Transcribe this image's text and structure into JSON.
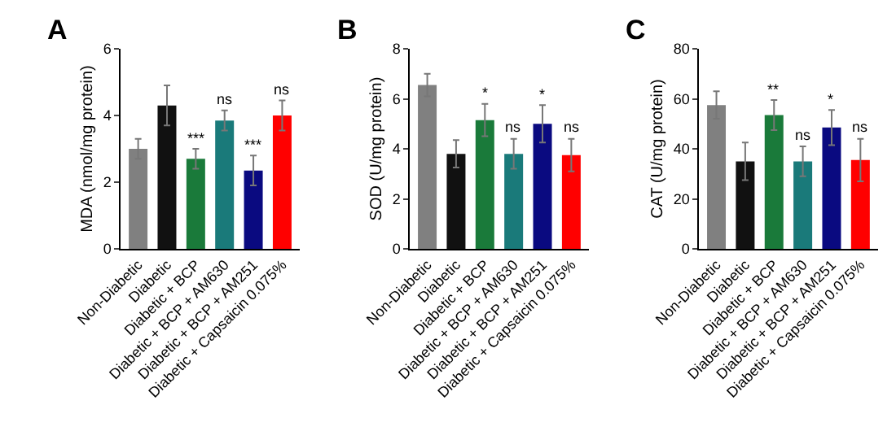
{
  "chart_data": [
    {
      "type": "bar",
      "title": "A",
      "ylabel": "MDA (nmol/mg protein)",
      "categories": [
        "Non-Diabetic",
        "Diabetic",
        "Diabetic + BCP",
        "Diabetic + BCP + AM630",
        "Diabetic + BCP + AM251",
        "Diabetic + Capsaicin 0.075%"
      ],
      "values": [
        3.0,
        4.3,
        2.7,
        3.85,
        2.35,
        4.0
      ],
      "errors": [
        0.3,
        0.6,
        0.3,
        0.3,
        0.45,
        0.45
      ],
      "colors": [
        "#808080",
        "#111111",
        "#1a7a3a",
        "#1a7a7a",
        "#0a0a80",
        "#ff0000"
      ],
      "ylim": [
        0,
        6
      ],
      "yticks": [
        0,
        2,
        4,
        6
      ],
      "grid": false,
      "annotations": [
        {
          "text": "***",
          "x": "Diabetic + BCP",
          "y": 3.0
        },
        {
          "text": "ns",
          "x": "Diabetic + BCP + AM630",
          "y": 4.15
        },
        {
          "text": "***",
          "x": "Diabetic + BCP + AM251",
          "y": 2.8
        },
        {
          "text": "ns",
          "x": "Diabetic + Capsaicin 0.075%",
          "y": 4.45
        }
      ]
    },
    {
      "type": "bar",
      "title": "B",
      "ylabel": "SOD (U/mg protein)",
      "categories": [
        "Non-Diabetic",
        "Diabetic",
        "Diabetic + BCP",
        "Diabetic + BCP + AM630",
        "Diabetic + BCP + AM251",
        "Diabetic + Capsaicin 0.075%"
      ],
      "values": [
        6.55,
        3.8,
        5.15,
        3.8,
        5.0,
        3.75
      ],
      "errors": [
        0.45,
        0.55,
        0.65,
        0.6,
        0.75,
        0.65
      ],
      "colors": [
        "#808080",
        "#111111",
        "#1a7a3a",
        "#1a7a7a",
        "#0a0a80",
        "#ff0000"
      ],
      "ylim": [
        0,
        8
      ],
      "yticks": [
        0,
        2,
        4,
        6,
        8
      ],
      "grid": false,
      "annotations": [
        {
          "text": "*",
          "x": "Diabetic + BCP",
          "y": 5.8
        },
        {
          "text": "ns",
          "x": "Diabetic + BCP + AM630",
          "y": 4.4
        },
        {
          "text": "*",
          "x": "Diabetic + BCP + AM251",
          "y": 5.75
        },
        {
          "text": "ns",
          "x": "Diabetic + Capsaicin 0.075%",
          "y": 4.4
        }
      ]
    },
    {
      "type": "bar",
      "title": "C",
      "ylabel": "CAT (U/mg protein)",
      "categories": [
        "Non-Diabetic",
        "Diabetic",
        "Diabetic + BCP",
        "Diabetic + BCP + AM630",
        "Diabetic + BCP + AM251",
        "Diabetic + Capsaicin 0.075%"
      ],
      "values": [
        57.5,
        35,
        53.5,
        35,
        48.5,
        35.5
      ],
      "errors": [
        5.5,
        7.5,
        6,
        6,
        7,
        8.5
      ],
      "colors": [
        "#808080",
        "#111111",
        "#1a7a3a",
        "#1a7a7a",
        "#0a0a80",
        "#ff0000"
      ],
      "ylim": [
        0,
        80
      ],
      "yticks": [
        0,
        20,
        40,
        60,
        80
      ],
      "grid": false,
      "annotations": [
        {
          "text": "**",
          "x": "Diabetic + BCP",
          "y": 59.5
        },
        {
          "text": "ns",
          "x": "Diabetic + BCP + AM630",
          "y": 41
        },
        {
          "text": "*",
          "x": "Diabetic + BCP + AM251",
          "y": 55.5
        },
        {
          "text": "ns",
          "x": "Diabetic + Capsaicin 0.075%",
          "y": 44
        }
      ]
    }
  ]
}
